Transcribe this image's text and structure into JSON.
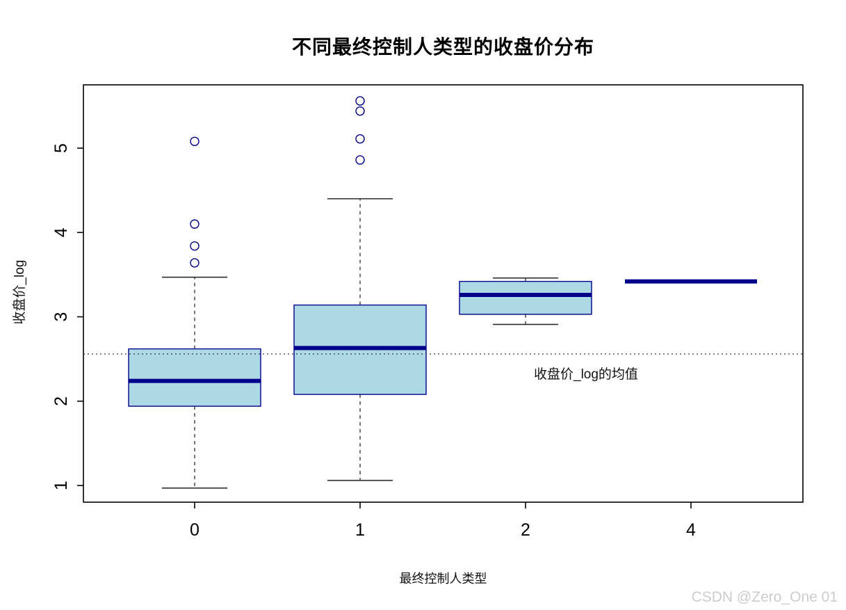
{
  "title": "不同最终控制人类型的收盘价分布",
  "x_label": "最终控制人类型",
  "y_label": "收盘价_log",
  "watermark": "CSDN @Zero_One 01",
  "chart_data": {
    "type": "boxplot",
    "title": "不同最终控制人类型的收盘价分布",
    "xlabel": "最终控制人类型",
    "ylabel": "收盘价_log",
    "categories": [
      "0",
      "1",
      "2",
      "4"
    ],
    "y_ticks": [
      1,
      2,
      3,
      4,
      5
    ],
    "ylim": [
      0.8,
      5.75
    ],
    "grid": false,
    "series": [
      {
        "category": "0",
        "min": 0.97,
        "q1": 1.94,
        "median": 2.24,
        "q3": 2.62,
        "max": 3.47,
        "outliers": [
          3.64,
          3.84,
          4.1,
          5.08
        ]
      },
      {
        "category": "1",
        "min": 1.06,
        "q1": 2.08,
        "median": 2.63,
        "q3": 3.14,
        "max": 4.4,
        "outliers": [
          4.86,
          5.11,
          5.44,
          5.56
        ]
      },
      {
        "category": "2",
        "min": 2.91,
        "q1": 3.03,
        "median": 3.26,
        "q3": 3.42,
        "max": 3.46,
        "outliers": []
      },
      {
        "category": "4",
        "min": 3.42,
        "q1": 3.42,
        "median": 3.42,
        "q3": 3.42,
        "max": 3.42,
        "outliers": []
      }
    ],
    "mean_line": {
      "value": 2.56,
      "label": "收盘价_log的均值",
      "style": "dotted"
    },
    "colors": {
      "box_fill": "#ADD8E6",
      "box_border": "#00008B",
      "median": "#00008B",
      "whisker": "#2b2b2b",
      "mean_line": "#333333",
      "axis": "#000000"
    }
  }
}
